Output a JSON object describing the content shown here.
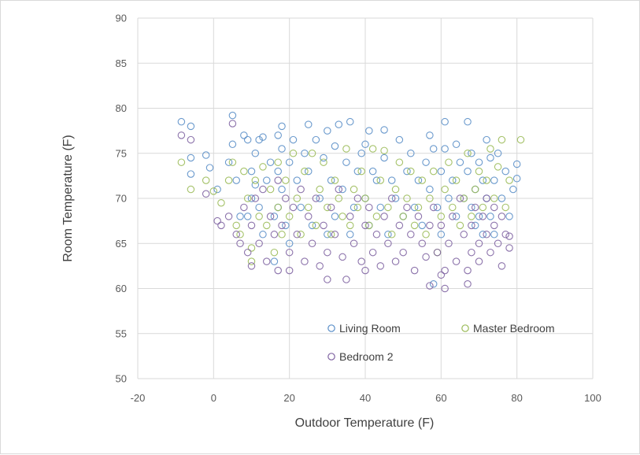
{
  "chart_data": {
    "type": "scatter",
    "xlabel": "Outdoor Temperature (F)",
    "ylabel": "Room Temperature (F)",
    "xlim": [
      -20,
      100
    ],
    "ylim": [
      50,
      90
    ],
    "x_ticks": [
      "-20",
      "0",
      "20",
      "40",
      "60",
      "80",
      "100"
    ],
    "y_ticks": [
      "50",
      "55",
      "60",
      "65",
      "70",
      "75",
      "80",
      "85",
      "90"
    ],
    "grid": "vertical and horizontal major gridlines",
    "legend_position": "inside-bottom",
    "marker": "open circle",
    "series": [
      {
        "name": "Living Room",
        "color": "#5b8fc8",
        "points": [
          [
            -8.5,
            78.5
          ],
          [
            -6,
            78
          ],
          [
            -6,
            74.5
          ],
          [
            -6,
            72.7
          ],
          [
            -2,
            74.8
          ],
          [
            -1,
            73.4
          ],
          [
            1,
            71
          ],
          [
            4,
            74
          ],
          [
            5,
            79.2
          ],
          [
            5,
            76
          ],
          [
            6,
            72
          ],
          [
            7,
            68
          ],
          [
            8,
            77
          ],
          [
            9,
            76.5
          ],
          [
            9,
            68
          ],
          [
            10,
            73
          ],
          [
            10,
            70
          ],
          [
            11,
            75
          ],
          [
            11,
            71.5
          ],
          [
            12,
            76.5
          ],
          [
            12,
            69
          ],
          [
            13,
            76.8
          ],
          [
            13,
            66
          ],
          [
            14,
            72
          ],
          [
            15,
            74
          ],
          [
            16,
            68
          ],
          [
            16,
            63
          ],
          [
            17,
            77
          ],
          [
            17,
            73
          ],
          [
            17,
            69
          ],
          [
            18,
            78
          ],
          [
            18,
            75.5
          ],
          [
            18,
            71
          ],
          [
            19,
            67
          ],
          [
            20,
            74
          ],
          [
            20,
            65
          ],
          [
            21,
            76.5
          ],
          [
            22,
            72
          ],
          [
            23,
            69
          ],
          [
            24,
            75
          ],
          [
            25,
            78.2
          ],
          [
            25,
            73
          ],
          [
            26,
            67
          ],
          [
            27,
            76.5
          ],
          [
            28,
            70
          ],
          [
            29,
            74.5
          ],
          [
            30,
            77.5
          ],
          [
            30,
            66
          ],
          [
            31,
            72
          ],
          [
            32,
            75.8
          ],
          [
            32,
            68
          ],
          [
            33,
            78.2
          ],
          [
            34,
            71
          ],
          [
            35,
            74
          ],
          [
            36,
            78.5
          ],
          [
            36,
            66
          ],
          [
            37,
            69
          ],
          [
            38,
            73
          ],
          [
            39,
            75
          ],
          [
            40,
            76
          ],
          [
            40,
            70
          ],
          [
            41,
            77.5
          ],
          [
            41,
            67
          ],
          [
            42,
            73
          ],
          [
            43,
            72
          ],
          [
            44,
            69
          ],
          [
            45,
            77.6
          ],
          [
            45,
            74.5
          ],
          [
            46,
            66
          ],
          [
            47,
            72
          ],
          [
            48,
            70
          ],
          [
            49,
            76.5
          ],
          [
            50,
            68
          ],
          [
            51,
            73
          ],
          [
            52,
            75
          ],
          [
            53,
            69
          ],
          [
            54,
            72
          ],
          [
            55,
            67
          ],
          [
            56,
            74
          ],
          [
            57,
            77
          ],
          [
            57,
            71
          ],
          [
            58,
            75.5
          ],
          [
            58,
            60.5
          ],
          [
            59,
            69
          ],
          [
            60,
            73
          ],
          [
            60,
            66
          ],
          [
            61,
            75.5
          ],
          [
            61,
            78.5
          ],
          [
            62,
            70
          ],
          [
            63,
            72
          ],
          [
            64,
            76
          ],
          [
            64,
            68
          ],
          [
            65,
            74
          ],
          [
            66,
            70
          ],
          [
            67,
            73
          ],
          [
            67,
            78.5
          ],
          [
            68,
            69
          ],
          [
            68,
            75
          ],
          [
            69,
            71
          ],
          [
            69,
            67
          ],
          [
            70,
            74
          ],
          [
            70,
            68
          ],
          [
            71,
            72
          ],
          [
            71,
            66
          ],
          [
            72,
            76.5
          ],
          [
            72,
            70
          ],
          [
            73,
            68
          ],
          [
            73,
            74.5
          ],
          [
            74,
            72
          ],
          [
            74,
            66
          ],
          [
            75,
            75
          ],
          [
            76,
            70
          ],
          [
            77,
            73
          ],
          [
            78,
            68
          ],
          [
            79,
            71
          ],
          [
            80,
            73.8
          ],
          [
            80,
            72.2
          ]
        ]
      },
      {
        "name": "Master Bedroom",
        "color": "#9bbb59",
        "points": [
          [
            -8.5,
            74
          ],
          [
            -6,
            71
          ],
          [
            -2,
            72
          ],
          [
            0,
            70.8
          ],
          [
            2,
            69.5
          ],
          [
            4,
            72
          ],
          [
            5,
            74
          ],
          [
            6,
            67
          ],
          [
            7,
            66
          ],
          [
            8,
            73
          ],
          [
            9,
            70
          ],
          [
            10,
            64.5
          ],
          [
            10,
            63
          ],
          [
            11,
            72
          ],
          [
            12,
            68
          ],
          [
            13,
            73.5
          ],
          [
            14,
            67
          ],
          [
            15,
            71
          ],
          [
            16,
            64
          ],
          [
            17,
            69
          ],
          [
            17,
            74
          ],
          [
            18,
            66
          ],
          [
            19,
            72
          ],
          [
            20,
            68
          ],
          [
            21,
            75
          ],
          [
            22,
            70
          ],
          [
            23,
            66
          ],
          [
            24,
            73
          ],
          [
            25,
            69
          ],
          [
            26,
            75
          ],
          [
            27,
            67
          ],
          [
            28,
            71
          ],
          [
            29,
            74
          ],
          [
            30,
            69
          ],
          [
            31,
            66
          ],
          [
            32,
            72
          ],
          [
            33,
            70
          ],
          [
            34,
            68
          ],
          [
            35,
            75.5
          ],
          [
            36,
            67
          ],
          [
            37,
            71
          ],
          [
            38,
            69
          ],
          [
            39,
            73
          ],
          [
            40,
            70
          ],
          [
            41,
            67
          ],
          [
            42,
            75.5
          ],
          [
            43,
            68
          ],
          [
            44,
            72
          ],
          [
            45,
            75.3
          ],
          [
            46,
            69
          ],
          [
            47,
            66
          ],
          [
            48,
            71
          ],
          [
            49,
            74
          ],
          [
            50,
            68
          ],
          [
            51,
            70
          ],
          [
            52,
            73
          ],
          [
            53,
            67
          ],
          [
            54,
            69
          ],
          [
            55,
            72
          ],
          [
            56,
            66
          ],
          [
            57,
            70
          ],
          [
            58,
            73
          ],
          [
            59,
            64
          ],
          [
            60,
            68
          ],
          [
            61,
            71
          ],
          [
            62,
            74
          ],
          [
            63,
            69
          ],
          [
            64,
            72
          ],
          [
            65,
            67
          ],
          [
            66,
            70
          ],
          [
            67,
            75
          ],
          [
            68,
            68
          ],
          [
            69,
            71
          ],
          [
            70,
            73
          ],
          [
            71,
            69
          ],
          [
            72,
            72
          ],
          [
            73,
            75.5
          ],
          [
            74,
            70
          ],
          [
            75,
            73.5
          ],
          [
            76,
            76.5
          ],
          [
            77,
            69
          ],
          [
            78,
            72
          ],
          [
            81,
            76.5
          ]
        ]
      },
      {
        "name": "Bedroom 2",
        "color": "#8064a2",
        "points": [
          [
            -8.5,
            77
          ],
          [
            -6,
            76.5
          ],
          [
            -2,
            70.5
          ],
          [
            1,
            67.5
          ],
          [
            2,
            67
          ],
          [
            4,
            68
          ],
          [
            5,
            78.3
          ],
          [
            6,
            66
          ],
          [
            7,
            65
          ],
          [
            8,
            69
          ],
          [
            9,
            64
          ],
          [
            10,
            62.5
          ],
          [
            10,
            67
          ],
          [
            11,
            70
          ],
          [
            12,
            65
          ],
          [
            13,
            71
          ],
          [
            14,
            63
          ],
          [
            15,
            68
          ],
          [
            16,
            66
          ],
          [
            17,
            72
          ],
          [
            17,
            62
          ],
          [
            18,
            67
          ],
          [
            19,
            70
          ],
          [
            20,
            64
          ],
          [
            20,
            62
          ],
          [
            21,
            69
          ],
          [
            22,
            66
          ],
          [
            23,
            71
          ],
          [
            24,
            63
          ],
          [
            25,
            68
          ],
          [
            26,
            65
          ],
          [
            27,
            70
          ],
          [
            28,
            62.5
          ],
          [
            29,
            67
          ],
          [
            30,
            64
          ],
          [
            30,
            61
          ],
          [
            31,
            69
          ],
          [
            32,
            66
          ],
          [
            33,
            71
          ],
          [
            34,
            63.5
          ],
          [
            35,
            61
          ],
          [
            36,
            68
          ],
          [
            37,
            65
          ],
          [
            38,
            70
          ],
          [
            39,
            63
          ],
          [
            40,
            67
          ],
          [
            40,
            62
          ],
          [
            41,
            69
          ],
          [
            42,
            64
          ],
          [
            43,
            66
          ],
          [
            44,
            62.5
          ],
          [
            45,
            68
          ],
          [
            46,
            65
          ],
          [
            47,
            70
          ],
          [
            48,
            63
          ],
          [
            49,
            67
          ],
          [
            50,
            64
          ],
          [
            51,
            69
          ],
          [
            52,
            66
          ],
          [
            53,
            62
          ],
          [
            54,
            68
          ],
          [
            55,
            65
          ],
          [
            56,
            63.5
          ],
          [
            57,
            67
          ],
          [
            57,
            60.3
          ],
          [
            58,
            69
          ],
          [
            59,
            64
          ],
          [
            60,
            61.5
          ],
          [
            60,
            67
          ],
          [
            61,
            60
          ],
          [
            61,
            62
          ],
          [
            62,
            65
          ],
          [
            63,
            68
          ],
          [
            64,
            63
          ],
          [
            65,
            70
          ],
          [
            66,
            66
          ],
          [
            67,
            62
          ],
          [
            67,
            60.5
          ],
          [
            68,
            67
          ],
          [
            68,
            64
          ],
          [
            69,
            69
          ],
          [
            70,
            65
          ],
          [
            70,
            63
          ],
          [
            71,
            68
          ],
          [
            72,
            66
          ],
          [
            72,
            70
          ],
          [
            73,
            64
          ],
          [
            74,
            67
          ],
          [
            74,
            69
          ],
          [
            75,
            65
          ],
          [
            76,
            62.5
          ],
          [
            76,
            68
          ],
          [
            77,
            66
          ],
          [
            78,
            64.5
          ],
          [
            78,
            65.8
          ]
        ]
      }
    ]
  }
}
